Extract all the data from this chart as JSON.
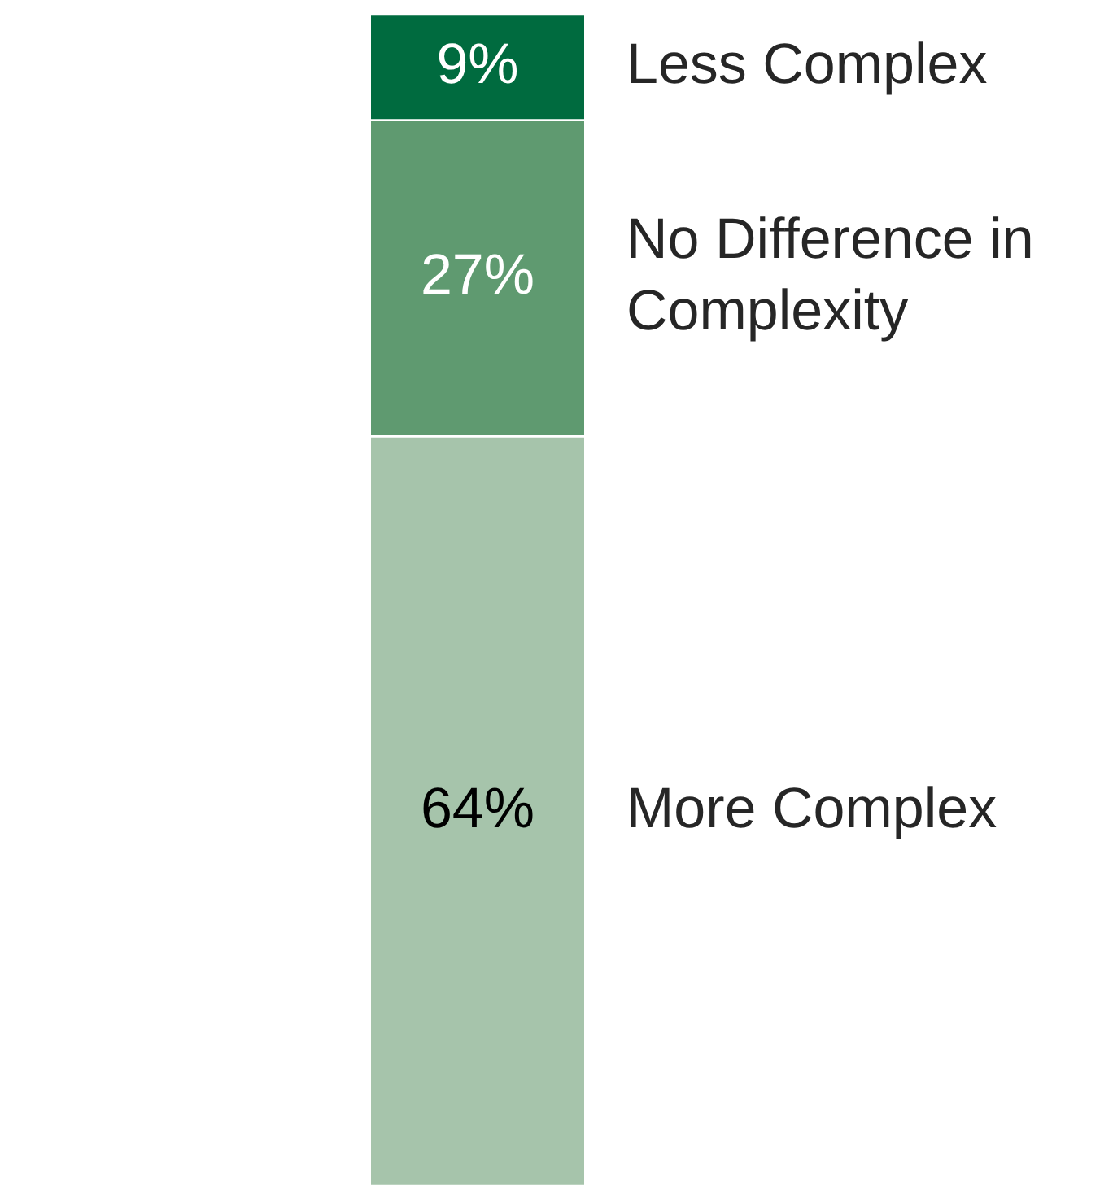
{
  "chart_data": {
    "type": "bar",
    "stacked": true,
    "categories": [
      null
    ],
    "series": [
      {
        "name": "More Complex",
        "color": "#a6c4ab",
        "values": [
          64
        ],
        "value_labels": [
          "64%"
        ]
      },
      {
        "name": "No Difference in Complexity",
        "color": "#5f9a70",
        "values": [
          27
        ],
        "value_labels": [
          "27%"
        ]
      },
      {
        "name": "Less Complex",
        "color": "#006b3f",
        "values": [
          9
        ],
        "value_labels": [
          "9%"
        ]
      }
    ]
  }
}
